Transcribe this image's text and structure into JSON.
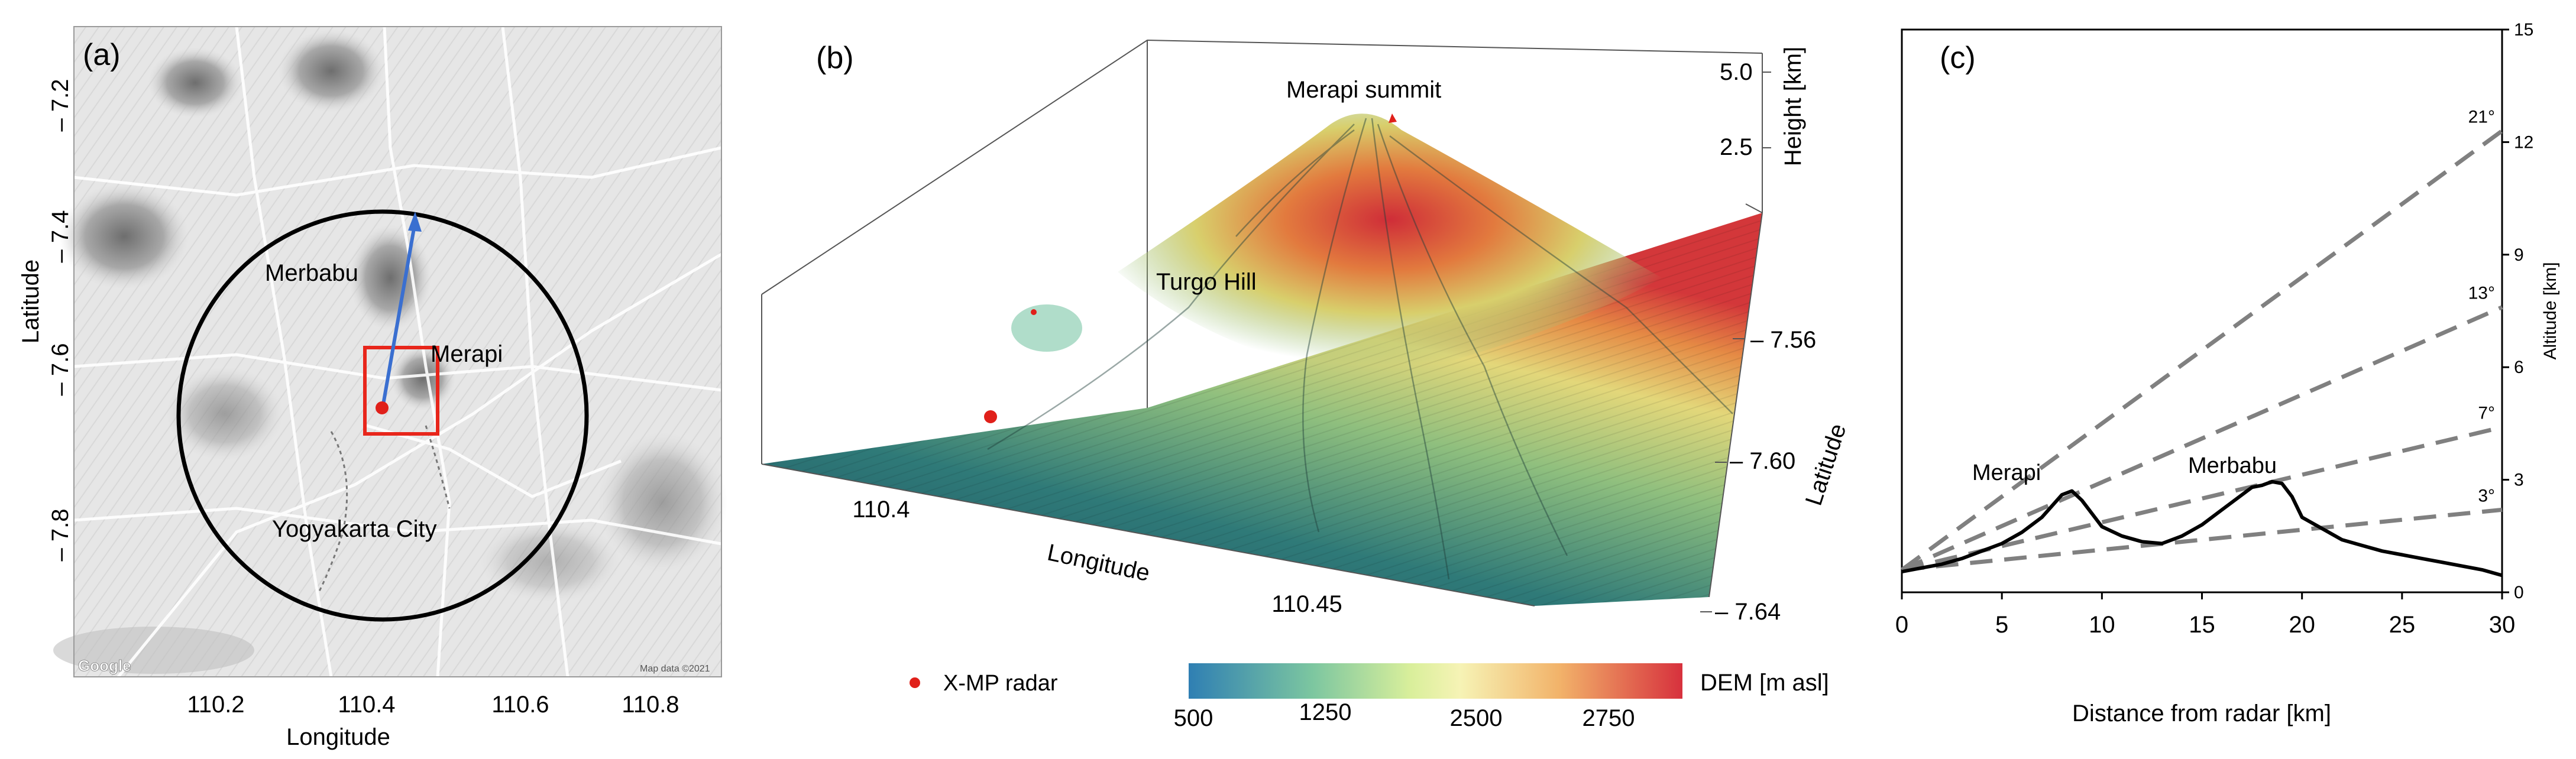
{
  "panel_a": {
    "label": "(a)",
    "x_axis_label": "Longitude",
    "y_axis_label": "Latitude",
    "x_ticks": [
      "110.2",
      "110.4",
      "110.6",
      "110.8"
    ],
    "y_ticks": [
      "– 7.2",
      "– 7.4",
      "– 7.6",
      "– 7.8"
    ],
    "place_merbabu": "Merbabu",
    "place_merapi": "Merapi",
    "place_yogyakarta": "Yogyakarta City",
    "watermark_google": "Google",
    "map_credit": "Map data ©2021",
    "colors": {
      "circle": "#000000",
      "box": "#e8261b",
      "arrow": "#3a6fd0",
      "radar": "#e0201a"
    }
  },
  "panel_b": {
    "label": "(b)",
    "summit_label": "Merapi summit",
    "hill_label": "Turgo Hill",
    "height_label": "Height [km]",
    "height_ticks": [
      "5.0",
      "2.5"
    ],
    "lat_label": "Latitude",
    "lat_ticks": [
      "– 7.56",
      "– 7.60",
      "– 7.64"
    ],
    "lon_label": "Longitude",
    "lon_ticks": [
      "110.4",
      "110.45"
    ],
    "legend_radar": "X-MP radar",
    "colorbar_title": "DEM [m asl]",
    "colorbar_ticks": [
      "500",
      "1250",
      "2500",
      "2750"
    ],
    "colors": {
      "radar": "#e0201a",
      "low": "#1f5a6a",
      "mid": "#e8e89a",
      "high": "#d83a3a"
    }
  },
  "panel_c": {
    "label": "(c)",
    "xlabel": "Distance from radar [km]",
    "ylabel": "Altitude [km]",
    "label_merapi": "Merapi",
    "label_merbabu": "Merbabu"
  },
  "chart_data": {
    "type": "line",
    "title": "",
    "xlabel": "Distance from radar [km]",
    "ylabel": "Altitude [km]",
    "xlim": [
      0,
      30
    ],
    "ylim": [
      0,
      15
    ],
    "x_ticks": [
      0,
      5,
      10,
      15,
      20,
      25,
      30
    ],
    "y_ticks": [
      0,
      3,
      6,
      9,
      12,
      15
    ],
    "grid": false,
    "terrain_profile": {
      "x": [
        0,
        1,
        2,
        3,
        4,
        5,
        6,
        7,
        7.5,
        8,
        8.5,
        9,
        9.5,
        10,
        11,
        12,
        13,
        14,
        15,
        16,
        17,
        17.5,
        18,
        18.5,
        19,
        19.5,
        20,
        21,
        22,
        23,
        24,
        25,
        26,
        27,
        28,
        29,
        30
      ],
      "y": [
        0.55,
        0.65,
        0.75,
        0.9,
        1.1,
        1.3,
        1.6,
        2.0,
        2.3,
        2.6,
        2.7,
        2.45,
        2.1,
        1.75,
        1.5,
        1.35,
        1.3,
        1.5,
        1.8,
        2.2,
        2.6,
        2.8,
        2.85,
        2.95,
        2.9,
        2.55,
        2.0,
        1.7,
        1.4,
        1.25,
        1.1,
        1.0,
        0.9,
        0.8,
        0.7,
        0.6,
        0.45
      ]
    },
    "elevation_lines": [
      {
        "label": "3°",
        "angle_deg": 3,
        "x": [
          0,
          30
        ],
        "y": [
          0.6,
          2.2
        ]
      },
      {
        "label": "7°",
        "angle_deg": 7,
        "x": [
          0,
          30
        ],
        "y": [
          0.6,
          4.4
        ]
      },
      {
        "label": "13°",
        "angle_deg": 13,
        "x": [
          0,
          30
        ],
        "y": [
          0.6,
          7.6
        ]
      },
      {
        "label": "21°",
        "angle_deg": 21,
        "x": [
          0,
          30
        ],
        "y": [
          0.6,
          12.3
        ]
      }
    ],
    "annotations": [
      "Merapi",
      "Merbabu"
    ]
  }
}
